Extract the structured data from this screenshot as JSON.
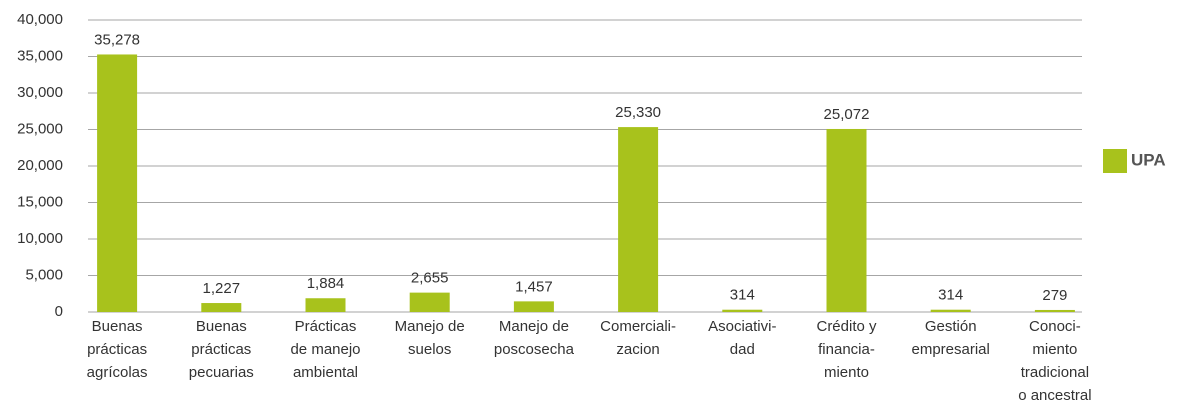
{
  "chart_data": {
    "type": "bar",
    "categories": [
      [
        "Buenas",
        "prácticas",
        "agrícolas"
      ],
      [
        "Buenas",
        "prácticas",
        "pecuarias"
      ],
      [
        "Prácticas",
        "de manejo",
        "ambiental"
      ],
      [
        "Manejo de",
        "suelos"
      ],
      [
        "Manejo de",
        "poscosecha"
      ],
      [
        "Comerciali-",
        "zacion"
      ],
      [
        "Asociativi-",
        "dad"
      ],
      [
        "Crédito y",
        "financia-",
        "miento"
      ],
      [
        "Gestión",
        "empresarial"
      ],
      [
        "Conoci-",
        "miento",
        "tradicional",
        "o ancestral"
      ]
    ],
    "series": [
      {
        "name": "UPA",
        "color": "#a8c21c",
        "values": [
          35278,
          1227,
          1884,
          2655,
          1457,
          25330,
          314,
          25072,
          314,
          279
        ],
        "value_labels": [
          "35,278",
          "1,227",
          "1,884",
          "2,655",
          "1,457",
          "25,330",
          "314",
          "25,072",
          "314",
          "279"
        ]
      }
    ],
    "ylim": [
      0,
      40000
    ],
    "yticks": [
      0,
      {
        "value": 5000,
        "label": "5,000"
      },
      {
        "value": 10000,
        "label": "10,000"
      },
      {
        "value": 15000,
        "label": "15,000"
      },
      {
        "value": 20000,
        "label": "20,000"
      },
      {
        "value": 25000,
        "label": "25,000"
      },
      {
        "value": 30000,
        "label": "30,000"
      },
      {
        "value": 35000,
        "label": "35,000"
      },
      {
        "value": 40000,
        "label": "40,000"
      }
    ],
    "grid": true,
    "legend": "right"
  }
}
